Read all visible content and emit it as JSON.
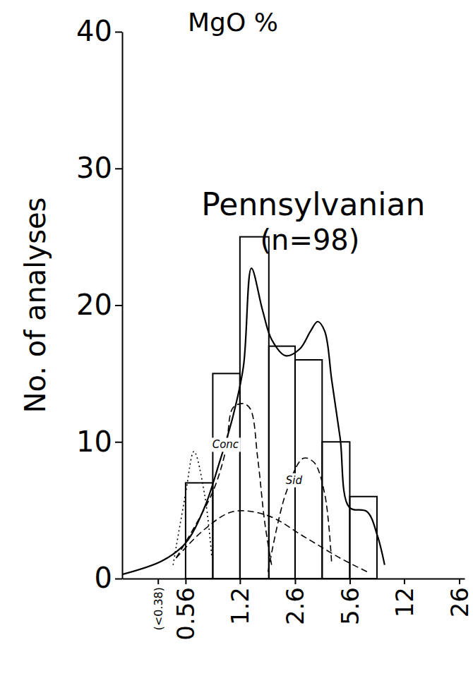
{
  "chart_data": {
    "type": "histogram",
    "title": "MgO %",
    "y_label": "No. of analyses",
    "bins": [
      0.56,
      0.82,
      1.2,
      1.8,
      2.6,
      3.8,
      5.6,
      8.2
    ],
    "values": [
      7,
      15,
      25,
      17,
      16,
      10,
      6
    ],
    "color": "#000000",
    "series": [
      {
        "type": "line",
        "color": "#000000",
        "line_style": "solid",
        "x": [
          0.23,
          0.404,
          0.56,
          0.73,
          0.89,
          1.09,
          1.26,
          1.41,
          1.65,
          1.87,
          2.28,
          2.78,
          3.23,
          3.57,
          3.94,
          4.35,
          4.89,
          5.57,
          7.13,
          8.27,
          9.13
        ],
        "values": [
          0.3,
          1.3,
          2.6,
          5.2,
          8.3,
          11.9,
          15.5,
          22.7,
          19.6,
          17.5,
          16.3,
          16.8,
          18.1,
          18.8,
          18.1,
          14.5,
          10.3,
          5.2,
          4.9,
          3.1,
          1.0
        ]
      },
      {
        "type": "line",
        "color": "#000000",
        "line_style": "dashed",
        "x": [
          0.49,
          0.81,
          0.98,
          1.09,
          1.26,
          1.39,
          1.54,
          1.7,
          1.87
        ],
        "values": [
          1.5,
          6.2,
          9.3,
          12.5,
          12.8,
          12.4,
          8.8,
          4.1,
          1.0
        ]
      },
      {
        "type": "line",
        "color": "#000000",
        "line_style": "dashed",
        "x": [
          1.78,
          2.28,
          2.92,
          3.39,
          3.94,
          4.35
        ],
        "values": [
          0.5,
          6.2,
          8.8,
          8.5,
          6.2,
          1.0
        ]
      },
      {
        "type": "line",
        "color": "#000000",
        "line_style": "dashed",
        "x": [
          0.49,
          0.73,
          1.09,
          1.78,
          2.92,
          4.89,
          7.13
        ],
        "values": [
          1.5,
          3.6,
          4.9,
          4.6,
          3.1,
          1.5,
          0.5
        ]
      },
      {
        "type": "line",
        "color": "#000000",
        "line_style": "dotted",
        "x": [
          0.47,
          0.56,
          0.63,
          0.73,
          0.81
        ],
        "values": [
          1.0,
          6.2,
          9.3,
          6.2,
          1.5
        ]
      }
    ],
    "annotations": [
      {
        "text": "Pennsylvanian",
        "x": 3.36,
        "y": 27.4
      },
      {
        "text": "(n=98)",
        "x": 3.2,
        "y": 24.8
      },
      {
        "text": "Conc",
        "x": 0.98,
        "y": 9.8
      },
      {
        "text": "Sid",
        "x": 2.56,
        "y": 7.2
      }
    ],
    "xlim": [
      0.23,
      28
    ],
    "xticks": [
      {
        "value": 0.38,
        "label": "(<0.38)"
      },
      0.56,
      1.2,
      2.6,
      5.6,
      12,
      26
    ],
    "ylim": [
      0,
      40
    ],
    "yticks": [
      0,
      10,
      20,
      30,
      40
    ],
    "log": "x",
    "grid": false
  }
}
